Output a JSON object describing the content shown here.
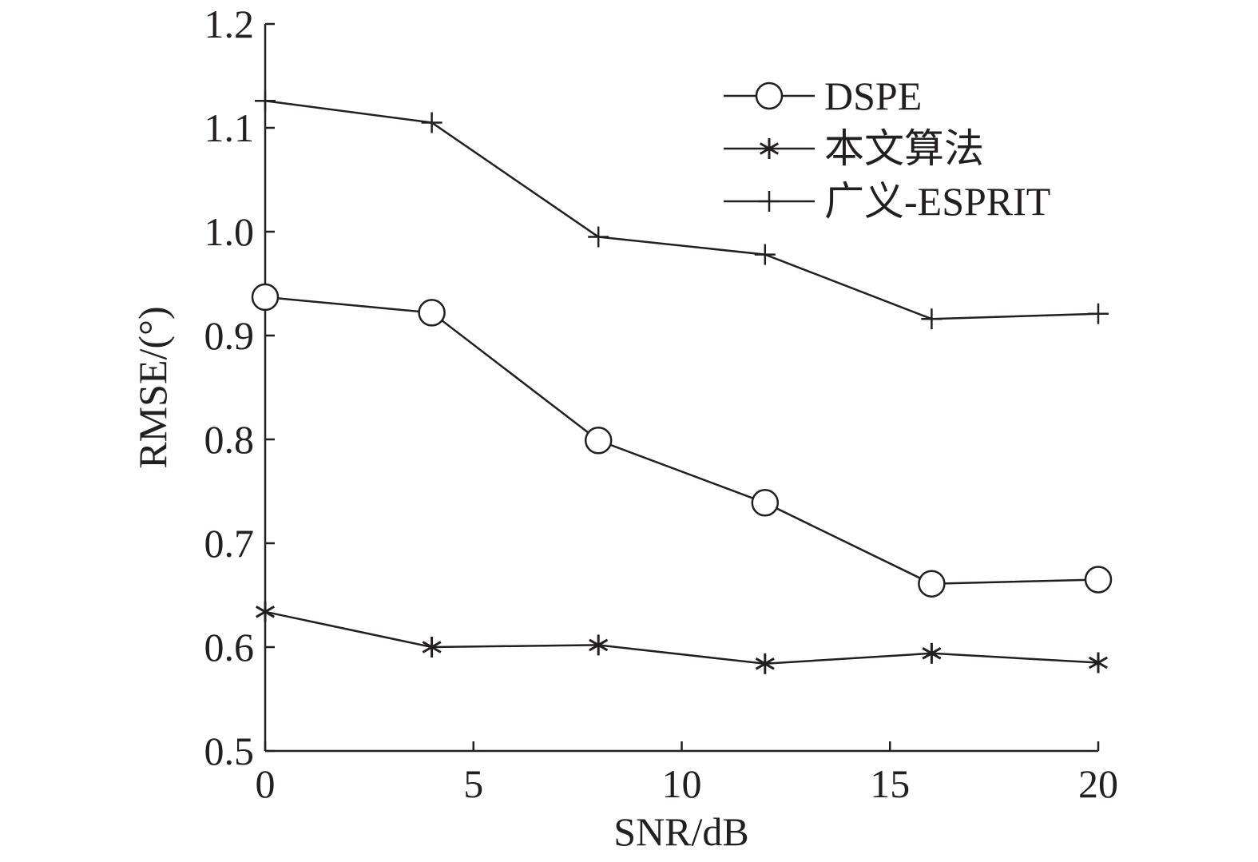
{
  "chart_data": {
    "type": "line",
    "title": "",
    "xlabel": "SNR/dB",
    "ylabel": "RMSE/(°)",
    "xlim": [
      0,
      20
    ],
    "ylim": [
      0.5,
      1.2
    ],
    "x_ticks": [
      0,
      5,
      10,
      15,
      20
    ],
    "x_tick_labels": [
      "0",
      "5",
      "10",
      "15",
      "20"
    ],
    "y_ticks": [
      0.5,
      0.6,
      0.7,
      0.8,
      0.9,
      1.0,
      1.1,
      1.2
    ],
    "y_tick_labels": [
      "0.5",
      "0.6",
      "0.7",
      "0.8",
      "0.9",
      "1.0",
      "1.1",
      "1.2"
    ],
    "grid": false,
    "legend_position": "top-right",
    "x": [
      0,
      4,
      8,
      12,
      16,
      20
    ],
    "series": [
      {
        "name": "DSPE",
        "marker": "circle",
        "values": [
          0.937,
          0.922,
          0.799,
          0.739,
          0.661,
          0.665
        ]
      },
      {
        "name": "本文算法",
        "marker": "asterisk",
        "values": [
          0.634,
          0.6,
          0.602,
          0.584,
          0.594,
          0.585
        ]
      },
      {
        "name": "广义-ESPRIT",
        "marker": "plus",
        "values": [
          1.126,
          1.105,
          0.995,
          0.978,
          0.916,
          0.921
        ]
      }
    ],
    "color": "#231f20"
  }
}
